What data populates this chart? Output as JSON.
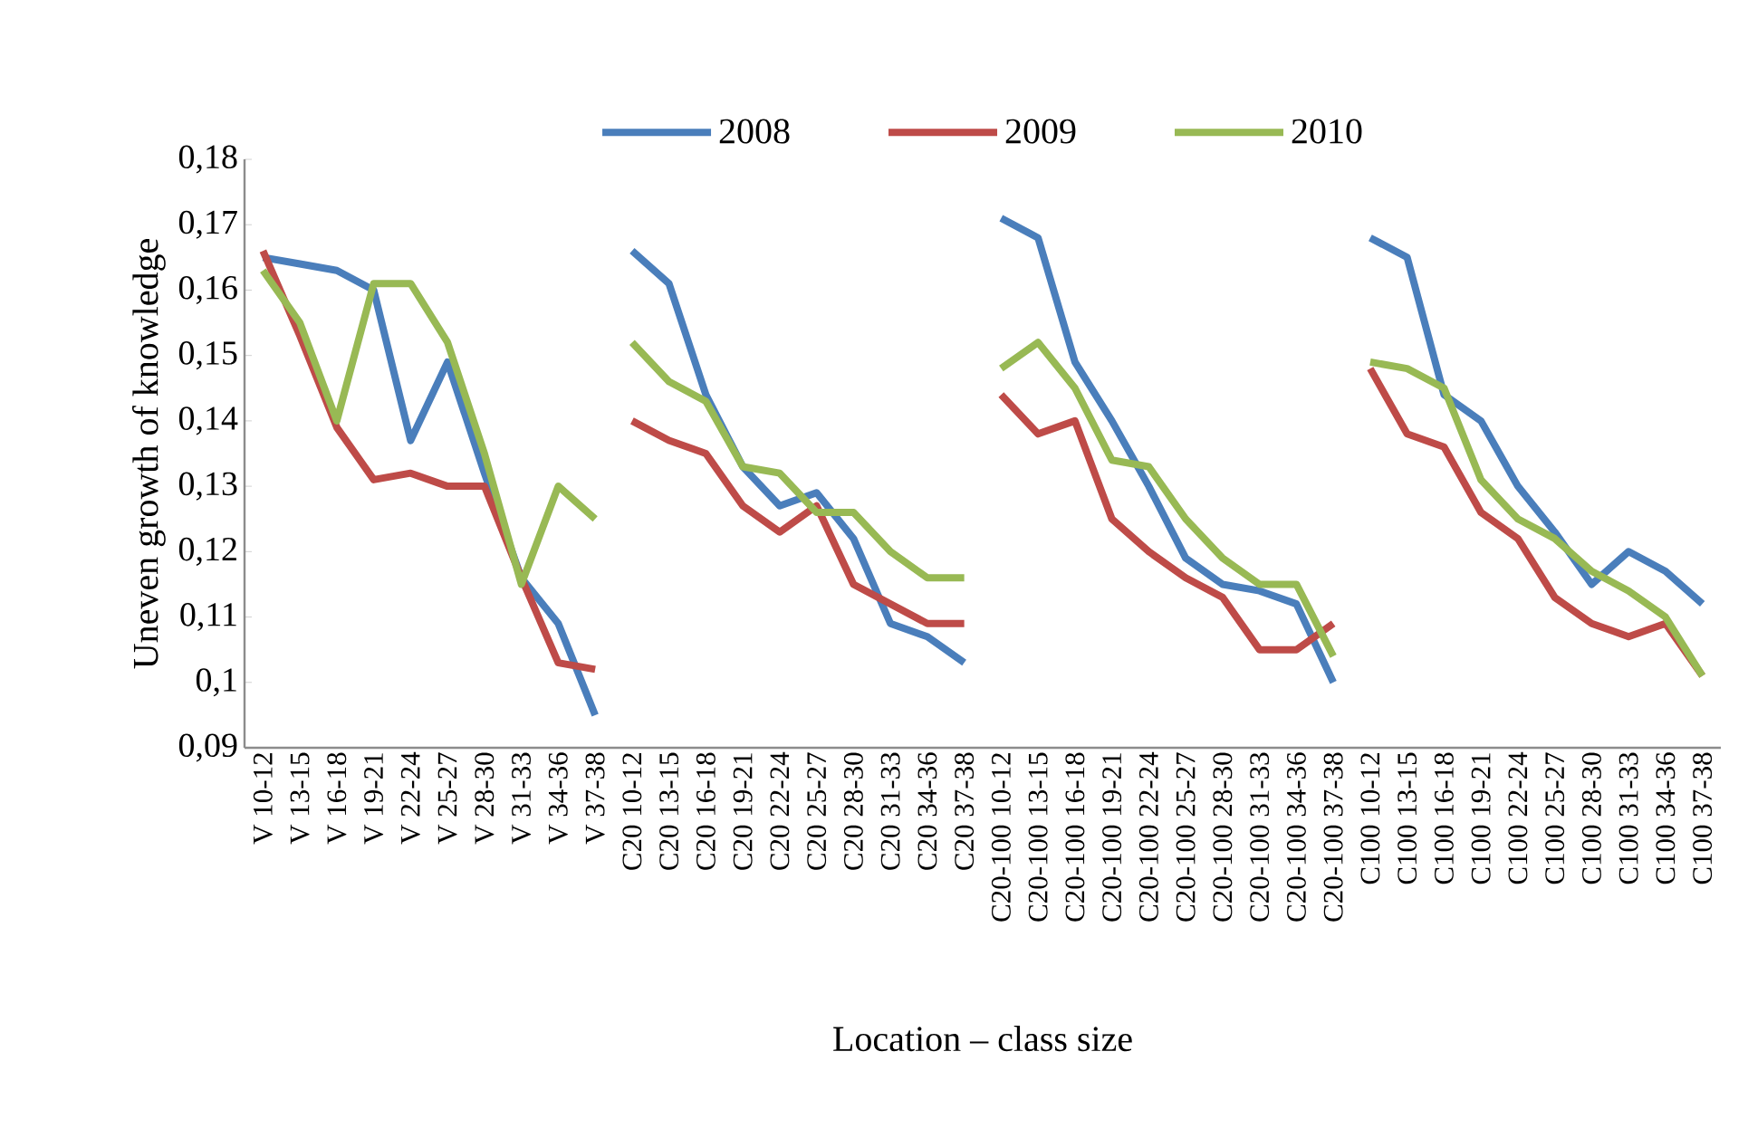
{
  "chart_data": {
    "type": "line",
    "xlabel": "Location – class size",
    "ylabel": "Uneven growth of knowledge",
    "categories": [
      "V 10-12",
      "V 13-15",
      "V 16-18",
      "V 19-21",
      "V 22-24",
      "V 25-27",
      "V 28-30",
      "V 31-33",
      "V 34-36",
      "V 37-38",
      "C20 10-12",
      "C20 13-15",
      "C20 16-18",
      "C20 19-21",
      "C20 22-24",
      "C20 25-27",
      "C20 28-30",
      "C20 31-33",
      "C20 34-36",
      "C20 37-38",
      "C20-100 10-12",
      "C20-100 13-15",
      "C20-100 16-18",
      "C20-100 19-21",
      "C20-100 22-24",
      "C20-100 25-27",
      "C20-100 28-30",
      "C20-100 31-33",
      "C20-100 34-36",
      "C20-100 37-38",
      "C100 10-12",
      "C100 13-15",
      "C100 16-18",
      "C100 19-21",
      "C100 22-24",
      "C100 25-27",
      "C100 28-30",
      "C100 31-33",
      "C100 34-36",
      "C100 37-38"
    ],
    "ylim": [
      0.09,
      0.18
    ],
    "yticks": [
      {
        "value": 0.09,
        "label": "0,09"
      },
      {
        "value": 0.1,
        "label": "0,1"
      },
      {
        "value": 0.11,
        "label": "0,11"
      },
      {
        "value": 0.12,
        "label": "0,12"
      },
      {
        "value": 0.13,
        "label": "0,13"
      },
      {
        "value": 0.14,
        "label": "0,14"
      },
      {
        "value": 0.15,
        "label": "0,15"
      },
      {
        "value": 0.16,
        "label": "0,16"
      },
      {
        "value": 0.17,
        "label": "0,17"
      },
      {
        "value": 0.18,
        "label": "0,18"
      }
    ],
    "grid": false,
    "legend": "top",
    "marker": "none",
    "line_style": "solid",
    "series": [
      {
        "name": "2008",
        "color": "#4a7ebb",
        "values": [
          0.165,
          0.164,
          0.163,
          0.16,
          0.137,
          0.149,
          0.132,
          0.116,
          0.109,
          0.095,
          null,
          null,
          null,
          null,
          null,
          null,
          null,
          null,
          null,
          null,
          null,
          null,
          null,
          null,
          null,
          null,
          null,
          null,
          null,
          null,
          null,
          null,
          null,
          null,
          null,
          null,
          null,
          null,
          null,
          null
        ]
      },
      {
        "name": "2009",
        "color": "#be4b48",
        "values": [
          0.166,
          0.153,
          0.139,
          0.131,
          0.132,
          0.13,
          0.13,
          0.116,
          0.103,
          0.102,
          null,
          null,
          null,
          null,
          null,
          null,
          null,
          null,
          null,
          null,
          null,
          null,
          null,
          null,
          null,
          null,
          null,
          null,
          null,
          null,
          null,
          null,
          null,
          null,
          null,
          null,
          null,
          null,
          null,
          null
        ]
      },
      {
        "name": "2010",
        "color": "#98b954",
        "values": [
          0.163,
          0.155,
          0.14,
          0.161,
          0.161,
          0.152,
          0.135,
          0.115,
          0.13,
          0.125,
          null,
          null,
          null,
          null,
          null,
          null,
          null,
          null,
          null,
          null,
          null,
          null,
          null,
          null,
          null,
          null,
          null,
          null,
          null,
          null,
          null,
          null,
          null,
          null,
          null,
          null,
          null,
          null,
          null,
          null
        ]
      },
      {
        "color": "#4a7ebb",
        "values": [
          null,
          null,
          null,
          null,
          null,
          null,
          null,
          null,
          null,
          null,
          0.166,
          0.161,
          0.144,
          0.133,
          0.127,
          0.129,
          0.122,
          0.109,
          0.107,
          0.103,
          null,
          null,
          null,
          null,
          null,
          null,
          null,
          null,
          null,
          null,
          null,
          null,
          null,
          null,
          null,
          null,
          null,
          null,
          null,
          null
        ]
      },
      {
        "color": "#be4b48",
        "values": [
          null,
          null,
          null,
          null,
          null,
          null,
          null,
          null,
          null,
          null,
          0.14,
          0.137,
          0.135,
          0.127,
          0.123,
          0.127,
          0.115,
          0.112,
          0.109,
          0.109,
          null,
          null,
          null,
          null,
          null,
          null,
          null,
          null,
          null,
          null,
          null,
          null,
          null,
          null,
          null,
          null,
          null,
          null,
          null,
          null
        ]
      },
      {
        "color": "#98b954",
        "values": [
          null,
          null,
          null,
          null,
          null,
          null,
          null,
          null,
          null,
          null,
          0.152,
          0.146,
          0.143,
          0.133,
          0.132,
          0.126,
          0.126,
          0.12,
          0.116,
          0.116,
          null,
          null,
          null,
          null,
          null,
          null,
          null,
          null,
          null,
          null,
          null,
          null,
          null,
          null,
          null,
          null,
          null,
          null,
          null,
          null
        ]
      },
      {
        "color": "#4a7ebb",
        "values": [
          null,
          null,
          null,
          null,
          null,
          null,
          null,
          null,
          null,
          null,
          null,
          null,
          null,
          null,
          null,
          null,
          null,
          null,
          null,
          null,
          0.171,
          0.168,
          0.149,
          0.14,
          0.13,
          0.119,
          0.115,
          0.114,
          0.112,
          0.1,
          null,
          null,
          null,
          null,
          null,
          null,
          null,
          null,
          null,
          null
        ]
      },
      {
        "color": "#be4b48",
        "values": [
          null,
          null,
          null,
          null,
          null,
          null,
          null,
          null,
          null,
          null,
          null,
          null,
          null,
          null,
          null,
          null,
          null,
          null,
          null,
          null,
          0.144,
          0.138,
          0.14,
          0.125,
          0.12,
          0.116,
          0.113,
          0.105,
          0.105,
          0.109,
          null,
          null,
          null,
          null,
          null,
          null,
          null,
          null,
          null,
          null
        ]
      },
      {
        "color": "#98b954",
        "values": [
          null,
          null,
          null,
          null,
          null,
          null,
          null,
          null,
          null,
          null,
          null,
          null,
          null,
          null,
          null,
          null,
          null,
          null,
          null,
          null,
          0.148,
          0.152,
          0.145,
          0.134,
          0.133,
          0.125,
          0.119,
          0.115,
          0.115,
          0.104,
          null,
          null,
          null,
          null,
          null,
          null,
          null,
          null,
          null,
          null
        ]
      },
      {
        "color": "#4a7ebb",
        "values": [
          null,
          null,
          null,
          null,
          null,
          null,
          null,
          null,
          null,
          null,
          null,
          null,
          null,
          null,
          null,
          null,
          null,
          null,
          null,
          null,
          null,
          null,
          null,
          null,
          null,
          null,
          null,
          null,
          null,
          null,
          0.168,
          0.165,
          0.144,
          0.14,
          0.13,
          0.123,
          0.115,
          0.12,
          0.117,
          0.112
        ]
      },
      {
        "color": "#be4b48",
        "values": [
          null,
          null,
          null,
          null,
          null,
          null,
          null,
          null,
          null,
          null,
          null,
          null,
          null,
          null,
          null,
          null,
          null,
          null,
          null,
          null,
          null,
          null,
          null,
          null,
          null,
          null,
          null,
          null,
          null,
          null,
          0.148,
          0.138,
          0.136,
          0.126,
          0.122,
          0.113,
          0.109,
          0.107,
          0.109,
          0.101
        ]
      },
      {
        "color": "#98b954",
        "values": [
          null,
          null,
          null,
          null,
          null,
          null,
          null,
          null,
          null,
          null,
          null,
          null,
          null,
          null,
          null,
          null,
          null,
          null,
          null,
          null,
          null,
          null,
          null,
          null,
          null,
          null,
          null,
          null,
          null,
          null,
          0.149,
          0.148,
          0.145,
          0.131,
          0.125,
          0.122,
          0.117,
          0.114,
          0.11,
          0.101
        ]
      }
    ]
  }
}
